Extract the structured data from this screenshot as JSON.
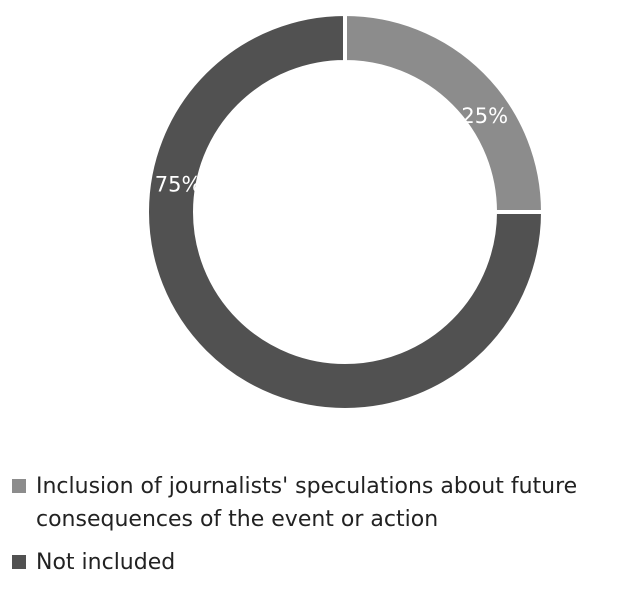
{
  "chart_data": {
    "type": "pie",
    "donut": true,
    "title": "",
    "slices": [
      {
        "label": "Inclusion of journalists' speculations about future consequences of the event or action",
        "value": 25,
        "value_label": "25%",
        "color": "#8c8c8c"
      },
      {
        "label": "Not included",
        "value": 75,
        "value_label": "75%",
        "color": "#515151"
      }
    ],
    "legend_position": "bottom"
  }
}
